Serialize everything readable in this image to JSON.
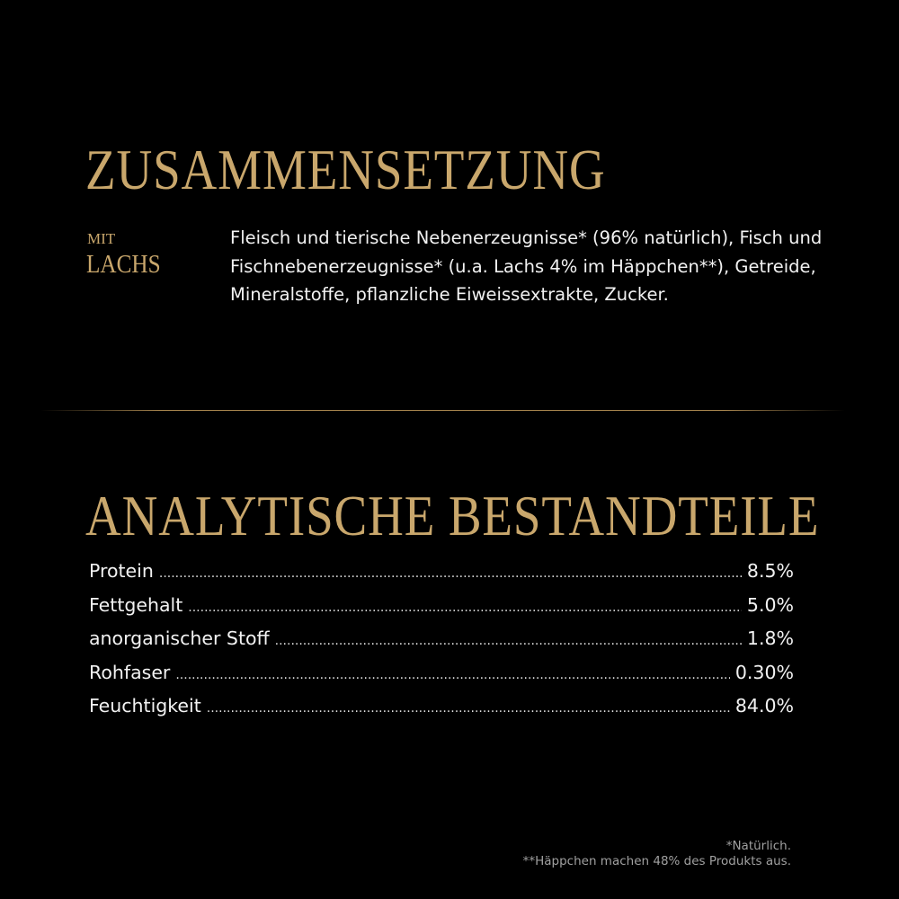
{
  "composition": {
    "title": "ZUSAMMENSETZUNG",
    "variant_prefix": "MIT",
    "variant": "LACHS",
    "ingredients": "Fleisch und tierische Nebenerzeugnisse* (96% natürlich), Fisch und Fischnebenerzeugnisse* (u.a. Lachs 4% im Häppchen**), Getreide, Mineralstoffe, pflanzliche Eiweissextrakte, Zucker."
  },
  "analysis": {
    "title": "ANALYTISCHE BESTANDTEILE",
    "rows": [
      {
        "label": "Protein",
        "value": "8.5%"
      },
      {
        "label": "Fettgehalt",
        "value": "5.0%"
      },
      {
        "label": "anorganischer Stoff",
        "value": "1.8%"
      },
      {
        "label": "Rohfaser",
        "value": "0.30%"
      },
      {
        "label": "Feuchtigkeit",
        "value": "84.0%"
      }
    ]
  },
  "footnotes": [
    "*Natürlich.",
    "**Häppchen machen 48% des Produkts aus."
  ],
  "colors": {
    "background": "#000000",
    "accent_gold": "#c9a76c"
  }
}
